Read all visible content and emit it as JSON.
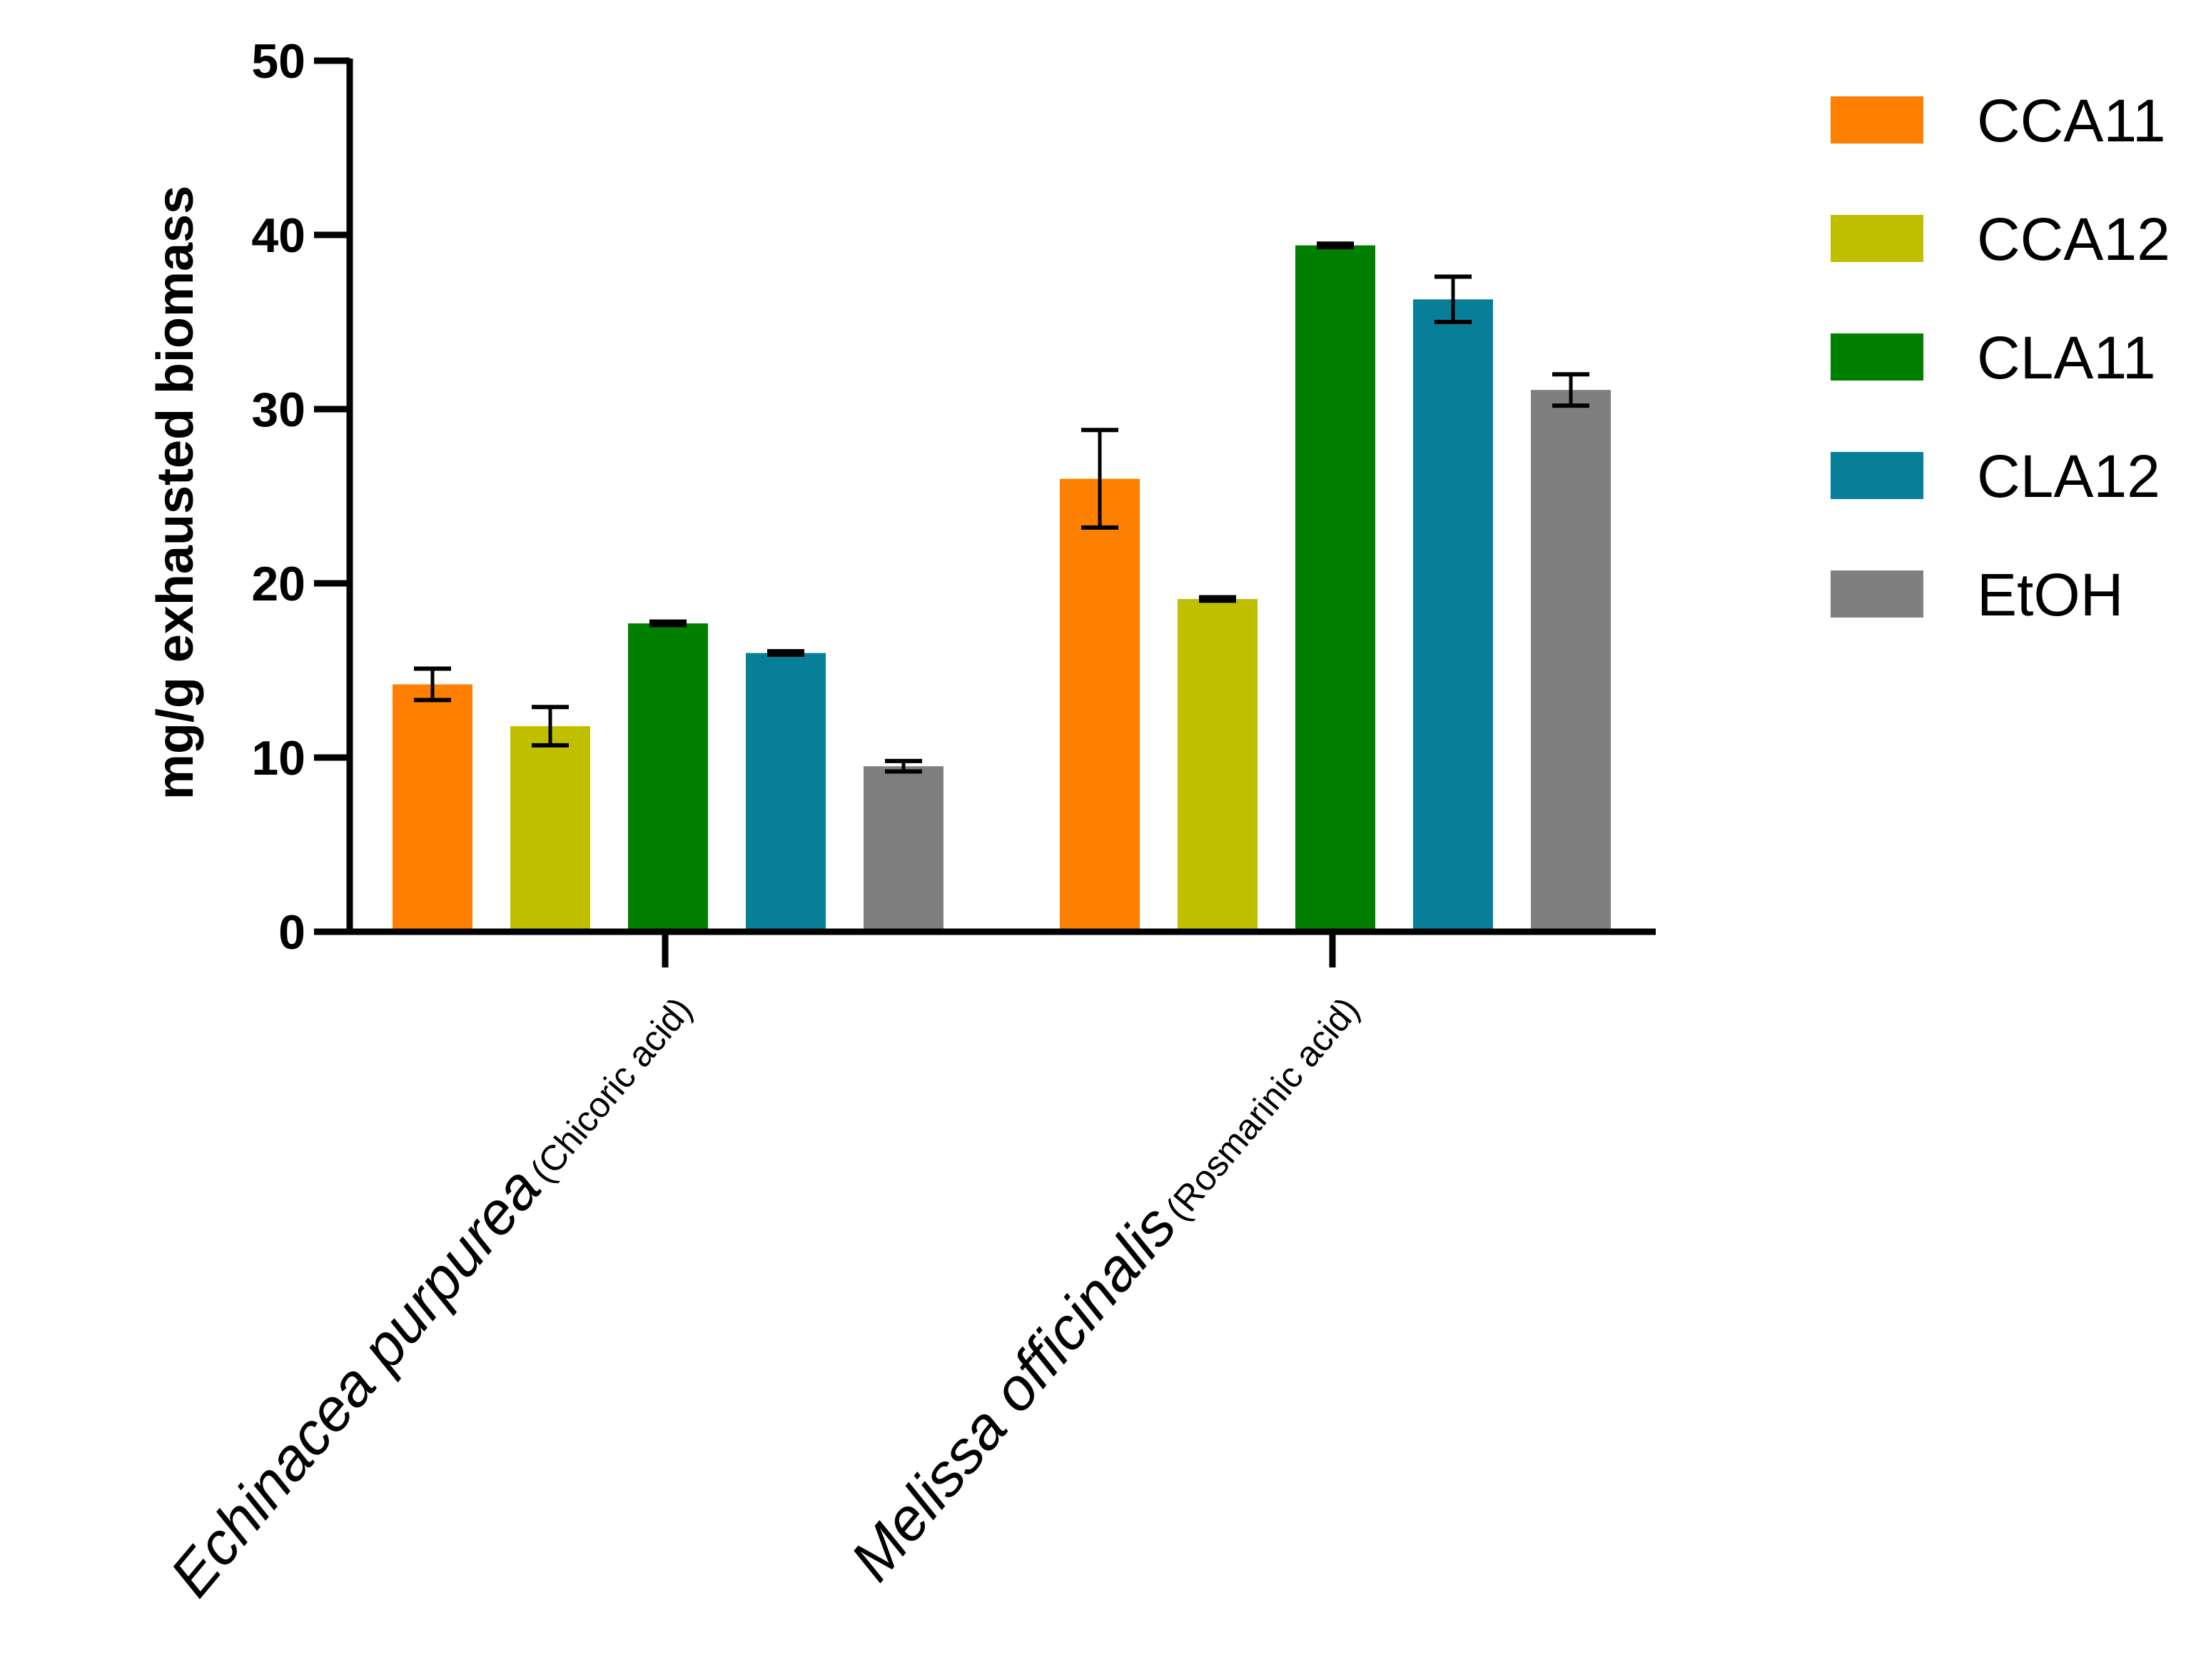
{
  "chart_data": {
    "type": "bar",
    "ylabel": "mg/g exhausted biomass",
    "xlabel": "",
    "ylim": [
      0,
      50
    ],
    "yticks": [
      0,
      10,
      20,
      30,
      40,
      50
    ],
    "ytick_labels": [
      "0",
      "10",
      "20",
      "30",
      "40",
      "50"
    ],
    "grid": false,
    "legend_position": "top-right",
    "categories": [
      {
        "name": "Echinacea purpurea",
        "sub": "(Chicoric acid)"
      },
      {
        "name": "Melissa officinalis",
        "sub": "(Rosmarinic acid)"
      }
    ],
    "series": [
      {
        "name": "CCA11",
        "color": "#ff7f00",
        "values": [
          14.2,
          26.0
        ],
        "errors": [
          0.9,
          2.8
        ]
      },
      {
        "name": "CCA12",
        "color": "#bfbf00",
        "values": [
          11.8,
          19.1
        ],
        "errors": [
          1.1,
          0.1
        ]
      },
      {
        "name": "CLA11",
        "color": "#007f00",
        "values": [
          17.7,
          39.4
        ],
        "errors": [
          0.1,
          0.1
        ]
      },
      {
        "name": "CLA12",
        "color": "#077f99",
        "values": [
          16.0,
          36.3
        ],
        "errors": [
          0.1,
          1.3
        ]
      },
      {
        "name": "EtOH",
        "color": "#7f7f7f",
        "values": [
          9.5,
          31.1
        ],
        "errors": [
          0.3,
          0.9
        ]
      }
    ]
  }
}
